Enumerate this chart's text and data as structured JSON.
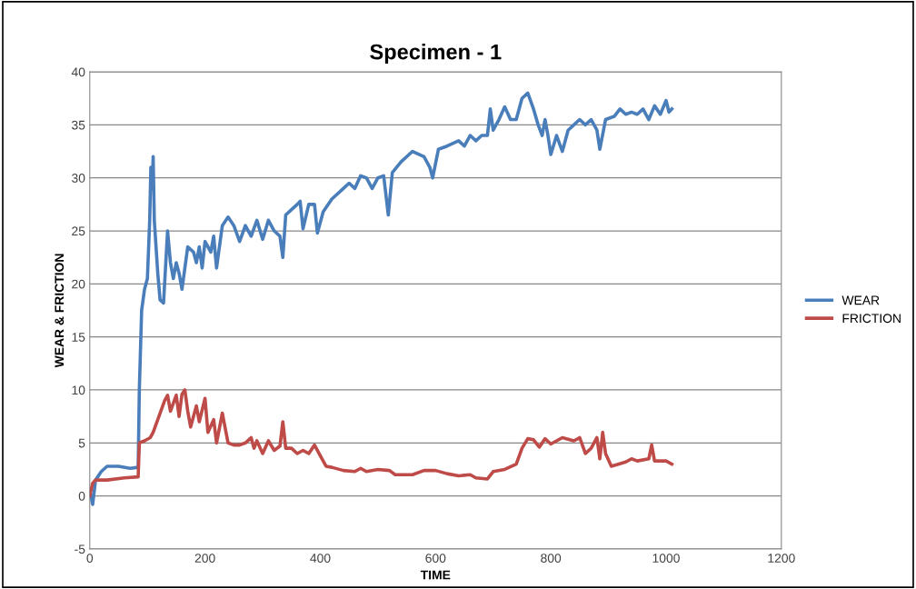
{
  "chart_data": {
    "type": "line",
    "title": "Specimen - 1",
    "xlabel": "TIME",
    "ylabel": "WEAR & FRICTION",
    "xlim": [
      0,
      1200
    ],
    "xticks": [
      0,
      200,
      400,
      600,
      800,
      1000,
      1200
    ],
    "ylim": [
      -5,
      40
    ],
    "yticks": [
      -5,
      0,
      5,
      10,
      15,
      20,
      25,
      30,
      35,
      40
    ],
    "grid": "y",
    "legend": "right",
    "marker": "none",
    "line_style": "solid",
    "series": [
      {
        "name": "WEAR",
        "color": "#4a7ebb",
        "x": [
          0,
          5,
          10,
          20,
          30,
          50,
          70,
          84,
          86,
          90,
          95,
          100,
          104,
          106,
          108,
          110,
          112,
          118,
          122,
          128,
          135,
          140,
          145,
          150,
          155,
          160,
          170,
          180,
          185,
          190,
          195,
          200,
          210,
          215,
          220,
          230,
          240,
          250,
          260,
          270,
          280,
          290,
          300,
          310,
          320,
          330,
          335,
          340,
          350,
          360,
          365,
          370,
          380,
          390,
          395,
          405,
          420,
          440,
          450,
          460,
          470,
          480,
          490,
          500,
          510,
          518,
          525,
          540,
          560,
          580,
          590,
          595,
          605,
          620,
          640,
          650,
          660,
          670,
          680,
          690,
          695,
          700,
          710,
          720,
          730,
          740,
          750,
          760,
          770,
          778,
          785,
          790,
          795,
          800,
          810,
          820,
          830,
          840,
          850,
          860,
          870,
          880,
          885,
          895,
          910,
          920,
          930,
          940,
          950,
          960,
          970,
          980,
          990,
          1000,
          1005,
          1010
        ],
        "values": [
          0.5,
          -0.8,
          1.5,
          2.3,
          2.8,
          2.8,
          2.6,
          2.7,
          10,
          17.5,
          19.5,
          20.5,
          26,
          31,
          29,
          32,
          26,
          21,
          18.5,
          18.2,
          25,
          22,
          20.5,
          22,
          21,
          19.5,
          23.5,
          23,
          22,
          23.5,
          21.5,
          24,
          23,
          24.5,
          21.5,
          25.5,
          26.3,
          25.5,
          24,
          25.5,
          24.5,
          26,
          24.2,
          26,
          25,
          24.5,
          22.5,
          26.5,
          27,
          27.5,
          27.8,
          25.2,
          27.5,
          27.5,
          24.8,
          26.8,
          28,
          29,
          29.5,
          29,
          30.2,
          30,
          29,
          30,
          30.2,
          26.5,
          30.5,
          31.5,
          32.5,
          32,
          31,
          30,
          32.7,
          33,
          33.5,
          33,
          34,
          33.5,
          34,
          34,
          36.5,
          34.5,
          35.5,
          36.7,
          35.5,
          35.5,
          37.5,
          38,
          36.5,
          35,
          34,
          35.5,
          34,
          32.2,
          34,
          32.5,
          34.5,
          35,
          35.5,
          35,
          35.5,
          34.5,
          32.7,
          35.5,
          35.8,
          36.5,
          36,
          36.2,
          36,
          36.5,
          35.5,
          36.8,
          36,
          37.3,
          36.2,
          36.5
        ]
      },
      {
        "name": "FRICTION",
        "color": "#be4b48",
        "x": [
          0,
          5,
          10,
          30,
          60,
          84,
          86,
          95,
          105,
          110,
          120,
          130,
          135,
          140,
          150,
          155,
          160,
          165,
          170,
          175,
          185,
          190,
          200,
          205,
          215,
          220,
          230,
          240,
          250,
          260,
          270,
          280,
          285,
          290,
          300,
          310,
          320,
          330,
          335,
          340,
          350,
          360,
          370,
          380,
          390,
          400,
          410,
          420,
          440,
          460,
          470,
          480,
          500,
          520,
          530,
          560,
          580,
          600,
          620,
          640,
          660,
          670,
          690,
          700,
          720,
          740,
          750,
          760,
          770,
          780,
          790,
          800,
          820,
          840,
          850,
          860,
          870,
          880,
          885,
          890,
          895,
          905,
          930,
          940,
          950,
          970,
          975,
          980,
          1000,
          1010
        ],
        "values": [
          0,
          1.2,
          1.5,
          1.5,
          1.7,
          1.8,
          5,
          5.2,
          5.5,
          6,
          7.5,
          9,
          9.5,
          8,
          9.5,
          7.5,
          9.6,
          10,
          8,
          6.5,
          8.5,
          7,
          9.2,
          6,
          7.2,
          5,
          7.8,
          5,
          4.8,
          4.8,
          5,
          5.5,
          4.5,
          5.2,
          4,
          5.2,
          4.3,
          4.7,
          7,
          4.5,
          4.5,
          4,
          4.3,
          4,
          4.8,
          3.8,
          2.8,
          2.7,
          2.4,
          2.3,
          2.6,
          2.3,
          2.5,
          2.4,
          2,
          2,
          2.4,
          2.4,
          2.1,
          1.9,
          2,
          1.7,
          1.6,
          2.3,
          2.5,
          3,
          4.5,
          5.4,
          5.3,
          4.6,
          5.4,
          4.9,
          5.5,
          5.2,
          5.5,
          4,
          4.5,
          5.5,
          3.5,
          6,
          4,
          2.8,
          3.2,
          3.5,
          3.3,
          3.5,
          4.8,
          3.3,
          3.3,
          3
        ]
      }
    ]
  }
}
